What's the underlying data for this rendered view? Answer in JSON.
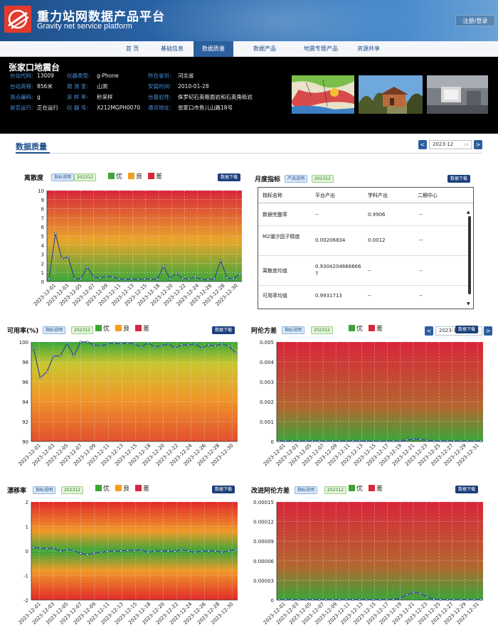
{
  "site": {
    "title": "重力站网数据产品平台",
    "subtitle": "Gravity net service platform",
    "login": "注册/登录"
  },
  "nav": [
    "首 页",
    "基础信息",
    "数据质量",
    "数据产品",
    "地震专题产品",
    "资源共享"
  ],
  "nav_active_index": 2,
  "station": {
    "name": "张家口地震台",
    "fields": [
      {
        "key": "台站代码:",
        "value": "13009"
      },
      {
        "key": "仪器类型:",
        "value": "g-Phone"
      },
      {
        "key": "所在省份:",
        "value": "河北省"
      },
      {
        "key": "台站高程:",
        "value": "856米"
      },
      {
        "key": "观 测 室:",
        "value": "山洞"
      },
      {
        "key": "安装时间:",
        "value": "2010-01-28"
      },
      {
        "key": "测点编码:",
        "value": "g"
      },
      {
        "key": "采 样 率:",
        "value": "秒采样"
      },
      {
        "key": "台基岩性:",
        "value": "侏罗纪石英粗面岩和石英角砾岩"
      },
      {
        "key": "是否运行:",
        "value": "正在运行"
      },
      {
        "key": "仪 器 号:",
        "value": "X212MGPH0070"
      },
      {
        "key": "通讯地址:",
        "value": "张家口市鱼儿山路18号"
      }
    ]
  },
  "data_quality": {
    "title": "数据质量",
    "date": "2023-12",
    "prev": "<",
    "next": ">"
  },
  "common": {
    "tag_desc": "指标说明",
    "tag_month": "202312",
    "download": "数据下载",
    "good": "优",
    "fair": "良",
    "poor": "差",
    "calendar_icon": "▭"
  },
  "monthly": {
    "title": "月度指标",
    "tag": "产品说明",
    "columns": [
      "指标名称",
      "平台产出",
      "学科产出",
      "二期中心"
    ],
    "rows": [
      [
        "数据完整率",
        "--",
        "0.9906",
        "--"
      ],
      [
        "M2潮汐因子精度",
        "0.00206834",
        "0.0012",
        "--"
      ],
      [
        "离散度均值",
        "0.93042046666667",
        "--",
        "--"
      ],
      [
        "可用率均值",
        "0.9931713",
        "--",
        "--"
      ]
    ]
  },
  "charts_meta": {
    "dates": [
      "2023-12-01",
      "2023-12-03",
      "2023-12-05",
      "2023-12-07",
      "2023-12-09",
      "2023-12-11",
      "2023-12-13",
      "2023-12-15",
      "2023-12-18",
      "2023-12-20",
      "2023-12-22",
      "2023-12-24",
      "2023-12-26",
      "2023-12-28",
      "2023-12-30"
    ],
    "dates2": [
      "2023-12-01",
      "2023-12-03",
      "2023-12-05",
      "2023-12-07",
      "2023-12-09",
      "2023-12-11",
      "2023-12-13",
      "2023-12-15",
      "2023-12-17",
      "2023-12-19",
      "2023-12-21",
      "2023-12-23",
      "2023-12-25",
      "2023-12-27",
      "2023-12-29",
      "2023-12-31"
    ]
  },
  "chart_data": [
    {
      "type": "line",
      "title": "离散度",
      "legend": [
        "优",
        "良",
        "差"
      ],
      "yticks": [
        "0",
        "1",
        "2",
        "3",
        "4",
        "5",
        "6",
        "7",
        "8",
        "9",
        "10"
      ],
      "ylim": [
        0,
        10
      ],
      "xticks": [
        "2023-12-01",
        "2023-12-03",
        "2023-12-05",
        "2023-12-07",
        "2023-12-09",
        "2023-12-11",
        "2023-12-13",
        "2023-12-15",
        "2023-12-18",
        "2023-12-20",
        "2023-12-22",
        "2023-12-24",
        "2023-12-26",
        "2023-12-28",
        "2023-12-30"
      ],
      "values": [
        0.3,
        5.3,
        2.5,
        2.7,
        0.3,
        0.3,
        1.6,
        0.5,
        0.4,
        0.6,
        0.5,
        0.3,
        0.2,
        0.3,
        0.2,
        0.3,
        0.3,
        0.2,
        1.7,
        0.3,
        0.9,
        0.3,
        0.3,
        0.5,
        0.2,
        0.2,
        0.3,
        2.3,
        0.4,
        0.3,
        0.8
      ]
    },
    {
      "type": "line",
      "title": "可用率(%)",
      "legend": [
        "优",
        "良",
        "差"
      ],
      "yticks": [
        "90",
        "92",
        "94",
        "96",
        "98",
        "100"
      ],
      "ylim": [
        90,
        100
      ],
      "xticks": [
        "2023-12-01",
        "2023-12-03",
        "2023-12-05",
        "2023-12-07",
        "2023-12-09",
        "2023-12-11",
        "2023-12-13",
        "2023-12-15",
        "2023-12-18",
        "2023-12-20",
        "2023-12-22",
        "2023-12-24",
        "2023-12-26",
        "2023-12-28",
        "2023-12-30"
      ],
      "values": [
        99.4,
        96.4,
        97.0,
        98.6,
        98.6,
        99.9,
        98.6,
        100,
        100,
        99.7,
        99.6,
        99.8,
        99.9,
        99.8,
        99.9,
        99.8,
        99.5,
        99.9,
        99.5,
        99.6,
        99.8,
        99.4,
        99.7,
        99.7,
        99.8,
        99.4,
        99.7,
        99.6,
        99.8,
        99.6,
        98.9
      ]
    },
    {
      "type": "line",
      "title": "阿伦方差",
      "legend": [
        "优",
        "差"
      ],
      "yticks": [
        "0",
        "0.001",
        "0.002",
        "0.003",
        "0.004",
        "0.005"
      ],
      "ylim": [
        0,
        0.005
      ],
      "xticks": [
        "2023-12-01",
        "2023-12-03",
        "2023-12-05",
        "2023-12-07",
        "2023-12-09",
        "2023-12-11",
        "2023-12-13",
        "2023-12-15",
        "2023-12-17",
        "2023-12-19",
        "2023-12-21",
        "2023-12-23",
        "2023-12-25",
        "2023-12-27",
        "2023-12-29",
        "2023-12-31"
      ],
      "values": [
        2e-05,
        2e-05,
        2e-05,
        2e-05,
        2e-05,
        2e-05,
        2e-05,
        2e-05,
        2e-05,
        2e-05,
        2e-05,
        2e-05,
        2e-05,
        2e-05,
        2e-05,
        2e-05,
        2e-05,
        2e-05,
        2e-05,
        8e-05,
        0.00012,
        0.00011,
        6e-05,
        2e-05,
        2e-05,
        2e-05,
        2e-05,
        2e-05,
        2e-05,
        2e-05,
        2e-05
      ]
    },
    {
      "type": "line",
      "title": "漂移率",
      "legend": [
        "优",
        "良",
        "差"
      ],
      "yticks": [
        "-2",
        "-1",
        "0",
        "1",
        "2"
      ],
      "ylim": [
        -2,
        2
      ],
      "xticks": [
        "2023-12-01",
        "2023-12-03",
        "2023-12-05",
        "2023-12-07",
        "2023-12-09",
        "2023-12-11",
        "2023-12-13",
        "2023-12-15",
        "2023-12-18",
        "2023-12-20",
        "2023-12-22",
        "2023-12-24",
        "2023-12-26",
        "2023-12-28",
        "2023-12-30"
      ],
      "values": [
        0.15,
        0.12,
        0.1,
        0.12,
        -0.02,
        0.05,
        0.02,
        -0.1,
        -0.15,
        -0.08,
        -0.05,
        -0.02,
        0.0,
        0.0,
        0.02,
        0.0,
        0.05,
        -0.05,
        0.0,
        0.0,
        0.0,
        -0.02,
        0.05,
        0.0,
        -0.05,
        0.0,
        0.0,
        0.0,
        -0.05,
        0.0,
        0.05
      ]
    },
    {
      "type": "line",
      "title": "改进阿伦方差",
      "legend": [
        "优",
        "差"
      ],
      "yticks": [
        "0",
        "0.00003",
        "0.00006",
        "0.00009",
        "0.00012",
        "0.00015"
      ],
      "ylim": [
        0,
        0.00015
      ],
      "xticks": [
        "2023-12-01",
        "2023-12-03",
        "2023-12-05",
        "2023-12-07",
        "2023-12-09",
        "2023-12-11",
        "2023-12-13",
        "2023-12-15",
        "2023-12-17",
        "2023-12-19",
        "2023-12-21",
        "2023-12-23",
        "2023-12-25",
        "2023-12-27",
        "2023-12-29",
        "2023-12-31"
      ],
      "values": [
        5e-07,
        5e-07,
        5e-07,
        5e-07,
        5e-07,
        5e-07,
        5e-07,
        5e-07,
        5e-07,
        5e-07,
        5e-07,
        5e-07,
        5e-07,
        5e-07,
        5e-07,
        5e-07,
        5e-07,
        1e-06,
        3e-06,
        8e-06,
        1.2e-05,
        1e-05,
        5e-06,
        1e-06,
        5e-07,
        5e-07,
        5e-07,
        5e-07,
        5e-07,
        5e-07,
        5e-07
      ]
    }
  ],
  "colors": {
    "good": "#3aa63a",
    "fair": "#f0a020",
    "poor": "#d9263a",
    "line": "#2a4d8f",
    "brand": "#1f4f8a"
  }
}
